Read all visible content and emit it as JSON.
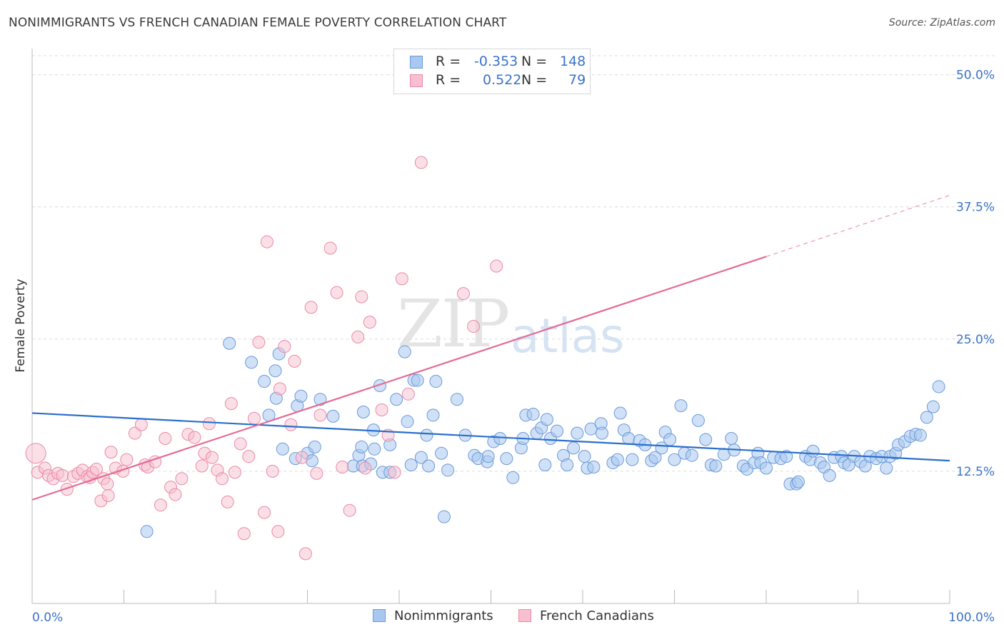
{
  "title": "NONIMMIGRANTS VS FRENCH CANADIAN FEMALE POVERTY CORRELATION CHART",
  "source": "Source: ZipAtlas.com",
  "watermark": {
    "zip": "ZIP",
    "atlas": "atlas"
  },
  "legend": {
    "rows": [
      {
        "r_label": "R =",
        "r_value": "-0.353",
        "n_label": "N =",
        "n_value": "148",
        "color": "#a9c8f0",
        "border": "#6a9ad8"
      },
      {
        "r_label": "R =",
        "r_value": "0.522",
        "n_label": "N =",
        "n_value": "79",
        "color": "#f7bfd0",
        "border": "#e98aa8"
      }
    ]
  },
  "bottom_legend": [
    "Nonimmigrants",
    "French Canadians"
  ],
  "chart_data": {
    "type": "scatter",
    "ylabel": "Female Poverty",
    "xlim": [
      0,
      100
    ],
    "ylim": [
      0,
      52
    ],
    "x_tick_labels": [
      "0.0%",
      "100.0%"
    ],
    "y_ticks": [
      12.5,
      25.0,
      37.5,
      50.0
    ],
    "y_tick_labels": [
      "12.5%",
      "25.0%",
      "37.5%",
      "50.0%"
    ],
    "grid": "horizontal dashed",
    "legend_placement": "top-center",
    "colors": {
      "blue": "#6a9ad8",
      "blue_fill": "#a9c8f0",
      "blue_line": "#2a6fcb",
      "pink": "#e98aa8",
      "pink_fill": "#f7bfd0",
      "pink_line": "#e46b95"
    },
    "trend_lines": [
      {
        "series": "Nonimmigrants",
        "x": [
          0,
          100
        ],
        "y": [
          18.0,
          13.5
        ]
      },
      {
        "series": "French Canadians",
        "x": [
          0,
          80
        ],
        "y": [
          9.8,
          32.8
        ],
        "dashed_extension": {
          "x": [
            80,
            100
          ],
          "y": [
            32.8,
            38.6
          ]
        }
      }
    ],
    "series": [
      {
        "name": "Nonimmigrants",
        "points": [
          [
            12.5,
            6.8
          ],
          [
            21.5,
            24.6
          ],
          [
            23.9,
            22.8
          ],
          [
            25.3,
            21.0
          ],
          [
            25.8,
            17.8
          ],
          [
            26.5,
            22.0
          ],
          [
            26.6,
            19.4
          ],
          [
            26.9,
            23.6
          ],
          [
            27.3,
            14.6
          ],
          [
            28.7,
            13.7
          ],
          [
            28.9,
            18.7
          ],
          [
            29.3,
            19.6
          ],
          [
            30.0,
            14.2
          ],
          [
            30.5,
            13.5
          ],
          [
            30.8,
            14.8
          ],
          [
            31.4,
            19.3
          ],
          [
            32.8,
            17.7
          ],
          [
            35.0,
            13.0
          ],
          [
            35.6,
            14.0
          ],
          [
            35.9,
            14.8
          ],
          [
            36.0,
            13.0
          ],
          [
            36.1,
            18.1
          ],
          [
            36.9,
            13.2
          ],
          [
            37.2,
            16.4
          ],
          [
            37.3,
            14.6
          ],
          [
            37.9,
            20.6
          ],
          [
            38.2,
            12.4
          ],
          [
            39.0,
            15.0
          ],
          [
            39.0,
            12.4
          ],
          [
            39.7,
            19.3
          ],
          [
            40.6,
            23.8
          ],
          [
            40.9,
            17.2
          ],
          [
            41.3,
            13.1
          ],
          [
            41.6,
            21.1
          ],
          [
            42.0,
            21.1
          ],
          [
            42.4,
            13.8
          ],
          [
            43.0,
            15.9
          ],
          [
            43.2,
            13.0
          ],
          [
            43.7,
            17.8
          ],
          [
            44.0,
            21.0
          ],
          [
            44.6,
            14.2
          ],
          [
            44.9,
            8.2
          ],
          [
            45.3,
            12.6
          ],
          [
            46.3,
            19.3
          ],
          [
            47.2,
            15.9
          ],
          [
            48.2,
            14.0
          ],
          [
            48.6,
            13.7
          ],
          [
            49.6,
            13.4
          ],
          [
            49.7,
            13.9
          ],
          [
            50.3,
            15.3
          ],
          [
            51.0,
            15.6
          ],
          [
            51.7,
            13.7
          ],
          [
            52.4,
            11.9
          ],
          [
            53.3,
            14.7
          ],
          [
            53.5,
            15.6
          ],
          [
            53.8,
            17.8
          ],
          [
            54.6,
            17.9
          ],
          [
            55.0,
            16.1
          ],
          [
            55.5,
            16.6
          ],
          [
            55.9,
            13.1
          ],
          [
            56.1,
            17.4
          ],
          [
            56.5,
            15.6
          ],
          [
            57.2,
            16.3
          ],
          [
            57.9,
            14.0
          ],
          [
            58.3,
            13.1
          ],
          [
            59.0,
            14.7
          ],
          [
            59.4,
            16.1
          ],
          [
            60.2,
            13.9
          ],
          [
            60.5,
            12.8
          ],
          [
            60.9,
            16.5
          ],
          [
            61.2,
            12.9
          ],
          [
            62.0,
            17.0
          ],
          [
            62.1,
            16.1
          ],
          [
            63.3,
            13.3
          ],
          [
            63.8,
            13.6
          ],
          [
            64.1,
            18.0
          ],
          [
            64.5,
            16.4
          ],
          [
            65.0,
            15.6
          ],
          [
            65.4,
            13.6
          ],
          [
            66.2,
            15.4
          ],
          [
            66.8,
            15.0
          ],
          [
            67.5,
            13.5
          ],
          [
            67.9,
            13.8
          ],
          [
            68.6,
            14.7
          ],
          [
            69.0,
            16.2
          ],
          [
            69.5,
            15.5
          ],
          [
            70.0,
            13.6
          ],
          [
            70.7,
            18.7
          ],
          [
            71.1,
            14.2
          ],
          [
            71.9,
            14.0
          ],
          [
            72.6,
            17.3
          ],
          [
            73.4,
            15.5
          ],
          [
            74.0,
            13.1
          ],
          [
            74.5,
            13.0
          ],
          [
            75.4,
            14.1
          ],
          [
            76.2,
            15.6
          ],
          [
            76.5,
            14.5
          ],
          [
            77.5,
            13.0
          ],
          [
            77.9,
            12.7
          ],
          [
            78.7,
            13.3
          ],
          [
            79.1,
            14.2
          ],
          [
            79.4,
            13.3
          ],
          [
            80.0,
            12.8
          ],
          [
            80.8,
            13.8
          ],
          [
            81.6,
            13.7
          ],
          [
            82.2,
            13.9
          ],
          [
            82.6,
            11.3
          ],
          [
            83.3,
            11.3
          ],
          [
            83.5,
            11.5
          ],
          [
            84.3,
            13.9
          ],
          [
            84.8,
            13.6
          ],
          [
            85.1,
            14.4
          ],
          [
            85.9,
            13.3
          ],
          [
            86.3,
            12.9
          ],
          [
            86.9,
            12.1
          ],
          [
            87.4,
            13.8
          ],
          [
            88.2,
            13.9
          ],
          [
            88.5,
            13.3
          ],
          [
            89.0,
            13.1
          ],
          [
            89.6,
            13.9
          ],
          [
            90.3,
            13.4
          ],
          [
            90.8,
            13.0
          ],
          [
            91.3,
            13.9
          ],
          [
            92.0,
            13.7
          ],
          [
            92.6,
            13.9
          ],
          [
            93.1,
            12.8
          ],
          [
            93.5,
            13.9
          ],
          [
            94.1,
            14.2
          ],
          [
            94.4,
            15.0
          ],
          [
            95.1,
            15.3
          ],
          [
            95.7,
            15.8
          ],
          [
            96.3,
            16.0
          ],
          [
            96.8,
            15.9
          ],
          [
            97.5,
            17.6
          ],
          [
            98.2,
            18.6
          ],
          [
            98.8,
            20.5
          ]
        ]
      },
      {
        "name": "French Canadians",
        "points": [
          [
            0.4,
            14.2
          ],
          [
            0.6,
            12.4
          ],
          [
            1.4,
            12.8
          ],
          [
            1.8,
            12.1
          ],
          [
            2.3,
            11.8
          ],
          [
            2.8,
            12.3
          ],
          [
            3.3,
            12.1
          ],
          [
            3.8,
            10.8
          ],
          [
            4.5,
            12.0
          ],
          [
            5.0,
            12.3
          ],
          [
            5.5,
            12.6
          ],
          [
            6.0,
            12.0
          ],
          [
            6.3,
            11.9
          ],
          [
            6.6,
            12.4
          ],
          [
            7.0,
            12.7
          ],
          [
            7.5,
            9.7
          ],
          [
            7.8,
            11.8
          ],
          [
            8.2,
            11.3
          ],
          [
            8.3,
            10.2
          ],
          [
            8.6,
            14.3
          ],
          [
            9.1,
            12.8
          ],
          [
            9.9,
            12.5
          ],
          [
            10.3,
            13.6
          ],
          [
            11.2,
            16.1
          ],
          [
            11.9,
            16.9
          ],
          [
            12.3,
            13.1
          ],
          [
            12.6,
            12.9
          ],
          [
            13.4,
            13.4
          ],
          [
            14.0,
            9.3
          ],
          [
            14.5,
            15.6
          ],
          [
            15.1,
            11.0
          ],
          [
            15.6,
            10.3
          ],
          [
            16.3,
            11.8
          ],
          [
            17.0,
            16.0
          ],
          [
            17.7,
            15.7
          ],
          [
            18.5,
            13.0
          ],
          [
            18.8,
            14.2
          ],
          [
            19.3,
            17.0
          ],
          [
            19.6,
            13.8
          ],
          [
            20.2,
            12.6
          ],
          [
            20.7,
            11.8
          ],
          [
            21.3,
            9.6
          ],
          [
            21.7,
            18.9
          ],
          [
            22.1,
            12.4
          ],
          [
            22.7,
            15.1
          ],
          [
            23.1,
            6.6
          ],
          [
            23.6,
            13.9
          ],
          [
            24.2,
            17.5
          ],
          [
            24.7,
            24.7
          ],
          [
            25.3,
            8.6
          ],
          [
            25.6,
            34.2
          ],
          [
            26.2,
            12.5
          ],
          [
            26.8,
            6.8
          ],
          [
            27.0,
            20.3
          ],
          [
            27.5,
            24.3
          ],
          [
            28.2,
            16.9
          ],
          [
            28.6,
            22.9
          ],
          [
            29.4,
            13.8
          ],
          [
            29.8,
            4.7
          ],
          [
            30.4,
            28.0
          ],
          [
            31.0,
            12.3
          ],
          [
            31.4,
            17.8
          ],
          [
            32.5,
            33.6
          ],
          [
            33.2,
            29.4
          ],
          [
            33.8,
            12.9
          ],
          [
            34.6,
            8.8
          ],
          [
            35.5,
            25.2
          ],
          [
            35.9,
            29.0
          ],
          [
            36.3,
            12.8
          ],
          [
            36.8,
            26.6
          ],
          [
            38.1,
            18.3
          ],
          [
            38.8,
            15.9
          ],
          [
            39.5,
            12.4
          ],
          [
            40.3,
            30.7
          ],
          [
            41.0,
            19.8
          ],
          [
            42.4,
            41.7
          ],
          [
            47.0,
            29.3
          ],
          [
            48.1,
            26.2
          ],
          [
            50.6,
            31.9
          ]
        ]
      }
    ]
  }
}
